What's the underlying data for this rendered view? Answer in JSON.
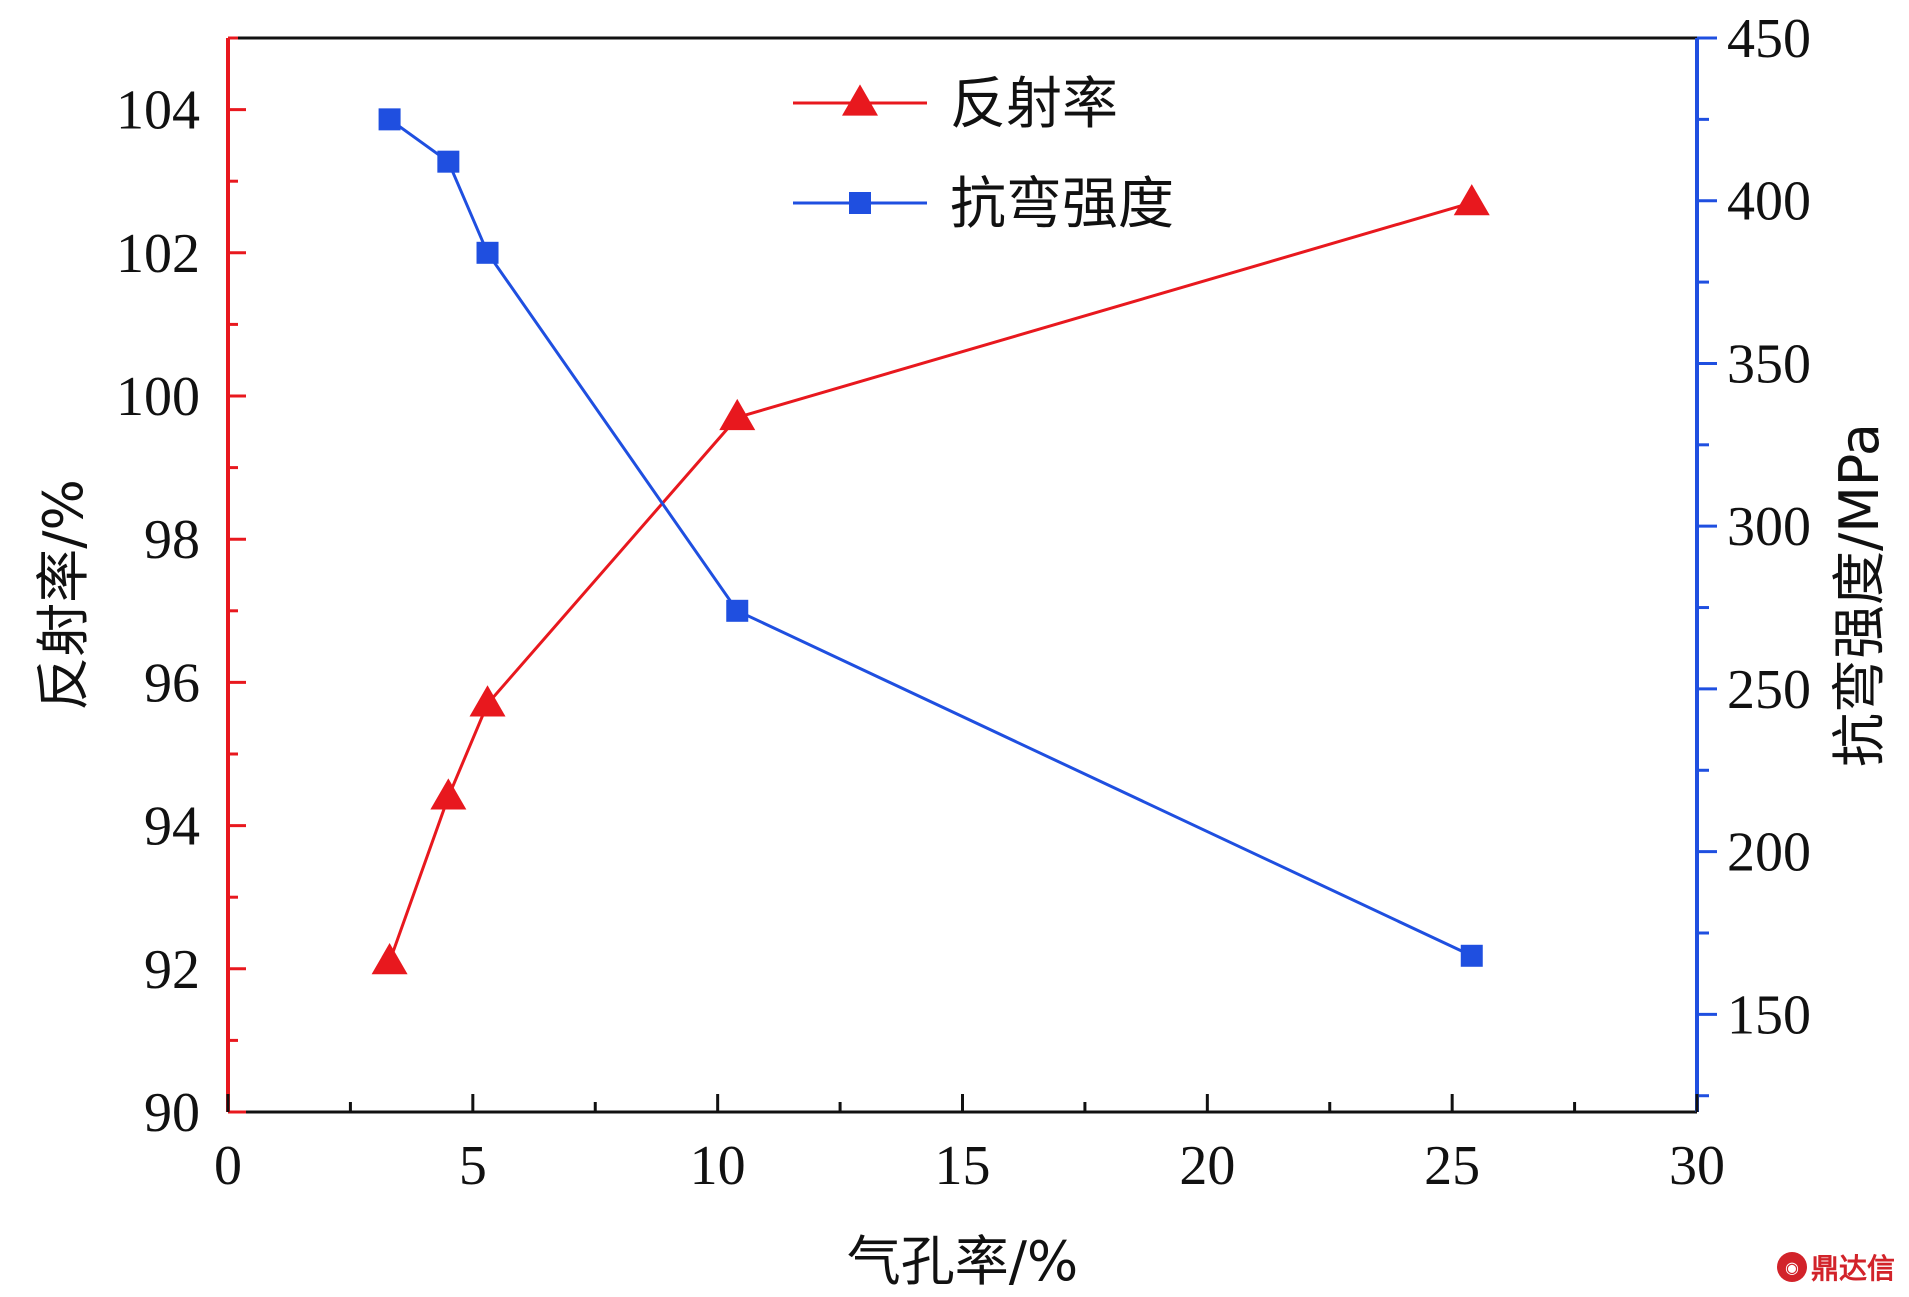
{
  "chart_data": {
    "type": "line",
    "xlabel": "气孔率/%",
    "ylabel_left": "反射率/%",
    "ylabel_right": "抗弯强度/MPa",
    "xlim": [
      0,
      30
    ],
    "ylim_left": [
      90,
      105
    ],
    "ylim_right": [
      120,
      450
    ],
    "x_ticks": [
      0,
      5,
      10,
      15,
      20,
      25,
      30
    ],
    "y_ticks_left": [
      90,
      92,
      94,
      96,
      98,
      100,
      102,
      104
    ],
    "y_ticks_right": [
      150,
      200,
      250,
      300,
      350,
      400,
      450
    ],
    "legend_position": "top-center",
    "series": [
      {
        "name": "反射率",
        "axis": "left",
        "marker": "triangle",
        "color": "#e8181e",
        "x": [
          3.3,
          4.5,
          5.3,
          10.4,
          25.4
        ],
        "y": [
          92.1,
          94.4,
          95.7,
          99.7,
          102.7
        ]
      },
      {
        "name": "抗弯强度",
        "axis": "right",
        "marker": "square",
        "color": "#1f4fe0",
        "x": [
          3.3,
          4.5,
          5.3,
          10.4,
          25.4
        ],
        "y": [
          425,
          412,
          384,
          274,
          168
        ]
      }
    ]
  },
  "watermark": "鼎达信"
}
